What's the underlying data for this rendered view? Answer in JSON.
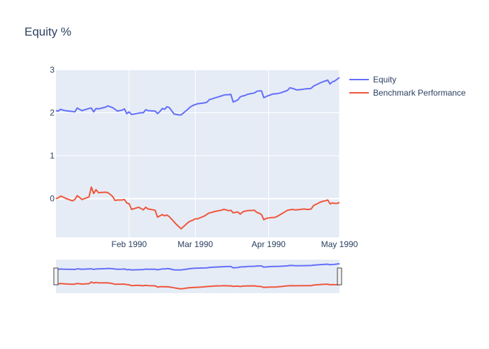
{
  "chart_data": {
    "type": "line",
    "title": "Equity %",
    "xlabel": "",
    "ylabel": "",
    "x_range": [
      "1990-01-01",
      "1990-05-01"
    ],
    "ylim": [
      -0.9,
      3.0
    ],
    "y_ticks": [
      3,
      2,
      1,
      0
    ],
    "x_ticks": [
      {
        "date": "1990-02-01",
        "label": "Feb 1990"
      },
      {
        "date": "1990-03-01",
        "label": "Mar 1990"
      },
      {
        "date": "1990-04-01",
        "label": "Apr 1990"
      },
      {
        "date": "1990-05-01",
        "label": "May 1990"
      }
    ],
    "grid": true,
    "legend_placement": "top-right",
    "rangeslider": true,
    "series": [
      {
        "name": "Equity",
        "color": "#636efa",
        "points": [
          [
            "1990-01-01",
            2.05
          ],
          [
            "1990-01-02",
            2.04
          ],
          [
            "1990-01-03",
            2.08
          ],
          [
            "1990-01-04",
            2.06
          ],
          [
            "1990-01-05",
            2.05
          ],
          [
            "1990-01-08",
            2.03
          ],
          [
            "1990-01-09",
            2.02
          ],
          [
            "1990-01-10",
            2.11
          ],
          [
            "1990-01-11",
            2.08
          ],
          [
            "1990-01-12",
            2.05
          ],
          [
            "1990-01-15",
            2.1
          ],
          [
            "1990-01-16",
            2.11
          ],
          [
            "1990-01-17",
            2.02
          ],
          [
            "1990-01-18",
            2.1
          ],
          [
            "1990-01-19",
            2.09
          ],
          [
            "1990-01-22",
            2.13
          ],
          [
            "1990-01-23",
            2.16
          ],
          [
            "1990-01-24",
            2.14
          ],
          [
            "1990-01-25",
            2.12
          ],
          [
            "1990-01-26",
            2.08
          ],
          [
            "1990-01-27",
            2.04
          ],
          [
            "1990-01-29",
            2.06
          ],
          [
            "1990-01-30",
            2.09
          ],
          [
            "1990-01-31",
            1.98
          ],
          [
            "1990-02-01",
            2.02
          ],
          [
            "1990-02-02",
            1.96
          ],
          [
            "1990-02-05",
            1.99
          ],
          [
            "1990-02-06",
            2.0
          ],
          [
            "1990-02-07",
            2.0
          ],
          [
            "1990-02-08",
            2.07
          ],
          [
            "1990-02-09",
            2.05
          ],
          [
            "1990-02-12",
            2.04
          ],
          [
            "1990-02-13",
            1.98
          ],
          [
            "1990-02-14",
            2.03
          ],
          [
            "1990-02-15",
            2.1
          ],
          [
            "1990-02-16",
            2.08
          ],
          [
            "1990-02-17",
            2.14
          ],
          [
            "1990-02-18",
            2.12
          ],
          [
            "1990-02-20",
            1.97
          ],
          [
            "1990-02-21",
            1.96
          ],
          [
            "1990-02-22",
            1.95
          ],
          [
            "1990-02-23",
            1.95
          ],
          [
            "1990-02-26",
            2.09
          ],
          [
            "1990-02-27",
            2.14
          ],
          [
            "1990-02-28",
            2.17
          ],
          [
            "1990-03-01",
            2.19
          ],
          [
            "1990-03-02",
            2.21
          ],
          [
            "1990-03-05",
            2.23
          ],
          [
            "1990-03-06",
            2.25
          ],
          [
            "1990-03-07",
            2.31
          ],
          [
            "1990-03-08",
            2.32
          ],
          [
            "1990-03-09",
            2.34
          ],
          [
            "1990-03-12",
            2.39
          ],
          [
            "1990-03-13",
            2.41
          ],
          [
            "1990-03-14",
            2.42
          ],
          [
            "1990-03-15",
            2.42
          ],
          [
            "1990-03-16",
            2.43
          ],
          [
            "1990-03-17",
            2.25
          ],
          [
            "1990-03-19",
            2.3
          ],
          [
            "1990-03-20",
            2.37
          ],
          [
            "1990-03-21",
            2.39
          ],
          [
            "1990-03-22",
            2.4
          ],
          [
            "1990-03-23",
            2.43
          ],
          [
            "1990-03-26",
            2.46
          ],
          [
            "1990-03-27",
            2.5
          ],
          [
            "1990-03-28",
            2.51
          ],
          [
            "1990-03-29",
            2.51
          ],
          [
            "1990-03-30",
            2.35
          ],
          [
            "1990-03-31",
            2.38
          ],
          [
            "1990-04-02",
            2.42
          ],
          [
            "1990-04-03",
            2.44
          ],
          [
            "1990-04-04",
            2.44
          ],
          [
            "1990-04-05",
            2.45
          ],
          [
            "1990-04-06",
            2.46
          ],
          [
            "1990-04-09",
            2.52
          ],
          [
            "1990-04-10",
            2.58
          ],
          [
            "1990-04-11",
            2.57
          ],
          [
            "1990-04-12",
            2.55
          ],
          [
            "1990-04-13",
            2.53
          ],
          [
            "1990-04-16",
            2.55
          ],
          [
            "1990-04-17",
            2.56
          ],
          [
            "1990-04-18",
            2.56
          ],
          [
            "1990-04-19",
            2.57
          ],
          [
            "1990-04-20",
            2.62
          ],
          [
            "1990-04-23",
            2.7
          ],
          [
            "1990-04-24",
            2.72
          ],
          [
            "1990-04-25",
            2.74
          ],
          [
            "1990-04-26",
            2.76
          ],
          [
            "1990-04-27",
            2.67
          ],
          [
            "1990-04-28",
            2.72
          ],
          [
            "1990-04-29",
            2.74
          ],
          [
            "1990-04-30",
            2.78
          ],
          [
            "1990-05-01",
            2.82
          ]
        ]
      },
      {
        "name": "Benchmark Performance",
        "color": "#ef553b",
        "points": [
          [
            "1990-01-01",
            0.0
          ],
          [
            "1990-01-02",
            0.02
          ],
          [
            "1990-01-03",
            0.06
          ],
          [
            "1990-01-04",
            0.04
          ],
          [
            "1990-01-05",
            0.01
          ],
          [
            "1990-01-08",
            -0.05
          ],
          [
            "1990-01-09",
            -0.02
          ],
          [
            "1990-01-10",
            0.07
          ],
          [
            "1990-01-11",
            0.03
          ],
          [
            "1990-01-12",
            -0.02
          ],
          [
            "1990-01-15",
            0.04
          ],
          [
            "1990-01-16",
            0.27
          ],
          [
            "1990-01-17",
            0.12
          ],
          [
            "1990-01-18",
            0.21
          ],
          [
            "1990-01-19",
            0.14
          ],
          [
            "1990-01-22",
            0.15
          ],
          [
            "1990-01-23",
            0.14
          ],
          [
            "1990-01-24",
            0.1
          ],
          [
            "1990-01-25",
            0.05
          ],
          [
            "1990-01-26",
            -0.04
          ],
          [
            "1990-01-27",
            -0.03
          ],
          [
            "1990-01-29",
            -0.03
          ],
          [
            "1990-01-30",
            -0.02
          ],
          [
            "1990-01-31",
            -0.1
          ],
          [
            "1990-02-01",
            -0.12
          ],
          [
            "1990-02-02",
            -0.25
          ],
          [
            "1990-02-05",
            -0.2
          ],
          [
            "1990-02-06",
            -0.23
          ],
          [
            "1990-02-07",
            -0.26
          ],
          [
            "1990-02-08",
            -0.2
          ],
          [
            "1990-02-09",
            -0.24
          ],
          [
            "1990-02-12",
            -0.27
          ],
          [
            "1990-02-13",
            -0.43
          ],
          [
            "1990-02-14",
            -0.4
          ],
          [
            "1990-02-15",
            -0.37
          ],
          [
            "1990-02-16",
            -0.4
          ],
          [
            "1990-02-17",
            -0.38
          ],
          [
            "1990-02-18",
            -0.42
          ],
          [
            "1990-02-20",
            -0.54
          ],
          [
            "1990-02-21",
            -0.6
          ],
          [
            "1990-02-22",
            -0.65
          ],
          [
            "1990-02-23",
            -0.7
          ],
          [
            "1990-02-26",
            -0.55
          ],
          [
            "1990-02-27",
            -0.52
          ],
          [
            "1990-02-28",
            -0.5
          ],
          [
            "1990-03-01",
            -0.47
          ],
          [
            "1990-03-02",
            -0.47
          ],
          [
            "1990-03-05",
            -0.4
          ],
          [
            "1990-03-06",
            -0.36
          ],
          [
            "1990-03-07",
            -0.33
          ],
          [
            "1990-03-08",
            -0.32
          ],
          [
            "1990-03-09",
            -0.3
          ],
          [
            "1990-03-12",
            -0.27
          ],
          [
            "1990-03-13",
            -0.25
          ],
          [
            "1990-03-14",
            -0.26
          ],
          [
            "1990-03-15",
            -0.28
          ],
          [
            "1990-03-16",
            -0.27
          ],
          [
            "1990-03-17",
            -0.33
          ],
          [
            "1990-03-19",
            -0.31
          ],
          [
            "1990-03-20",
            -0.36
          ],
          [
            "1990-03-21",
            -0.31
          ],
          [
            "1990-03-22",
            -0.29
          ],
          [
            "1990-03-23",
            -0.28
          ],
          [
            "1990-03-26",
            -0.27
          ],
          [
            "1990-03-27",
            -0.32
          ],
          [
            "1990-03-28",
            -0.34
          ],
          [
            "1990-03-29",
            -0.37
          ],
          [
            "1990-03-30",
            -0.49
          ],
          [
            "1990-03-31",
            -0.46
          ],
          [
            "1990-04-02",
            -0.44
          ],
          [
            "1990-04-03",
            -0.44
          ],
          [
            "1990-04-04",
            -0.43
          ],
          [
            "1990-04-05",
            -0.4
          ],
          [
            "1990-04-06",
            -0.37
          ],
          [
            "1990-04-09",
            -0.27
          ],
          [
            "1990-04-10",
            -0.26
          ],
          [
            "1990-04-11",
            -0.25
          ],
          [
            "1990-04-12",
            -0.26
          ],
          [
            "1990-04-13",
            -0.26
          ],
          [
            "1990-04-16",
            -0.24
          ],
          [
            "1990-04-17",
            -0.25
          ],
          [
            "1990-04-18",
            -0.25
          ],
          [
            "1990-04-19",
            -0.24
          ],
          [
            "1990-04-20",
            -0.16
          ],
          [
            "1990-04-23",
            -0.08
          ],
          [
            "1990-04-24",
            -0.06
          ],
          [
            "1990-04-25",
            -0.05
          ],
          [
            "1990-04-26",
            -0.03
          ],
          [
            "1990-04-27",
            -0.12
          ],
          [
            "1990-04-28",
            -0.1
          ],
          [
            "1990-04-29",
            -0.11
          ],
          [
            "1990-04-30",
            -0.11
          ],
          [
            "1990-05-01",
            -0.09
          ]
        ]
      }
    ]
  }
}
